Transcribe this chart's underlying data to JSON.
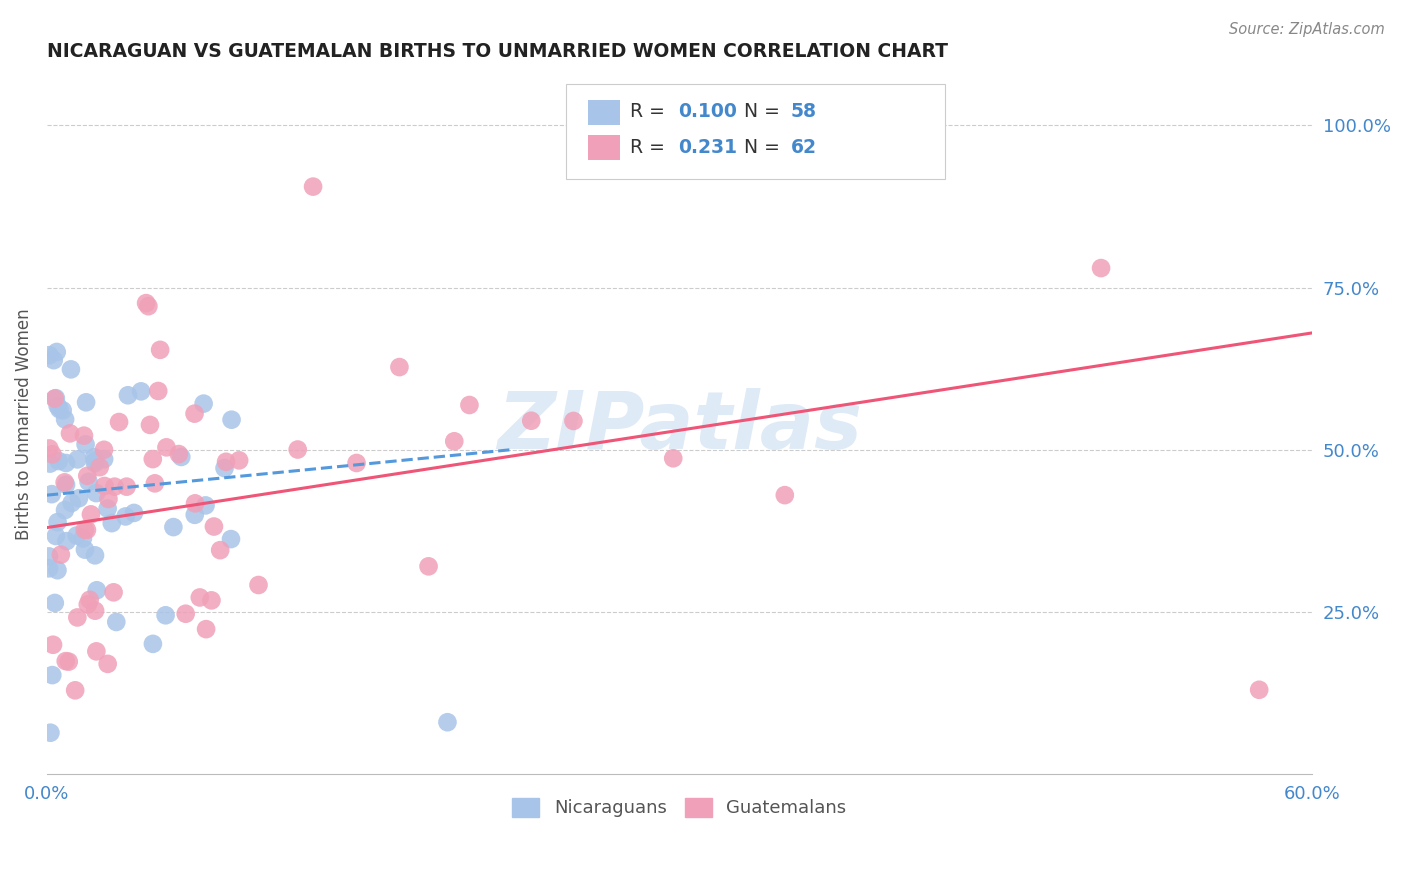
{
  "title": "NICARAGUAN VS GUATEMALAN BIRTHS TO UNMARRIED WOMEN CORRELATION CHART",
  "source": "Source: ZipAtlas.com",
  "ylabel": "Births to Unmarried Women",
  "ytick_labels": [
    "100.0%",
    "75.0%",
    "50.0%",
    "25.0%"
  ],
  "ytick_positions": [
    1.0,
    0.75,
    0.5,
    0.25
  ],
  "xlim": [
    0.0,
    0.6
  ],
  "ylim": [
    0.0,
    1.08
  ],
  "legend_r1": "R = 0.100",
  "legend_n1": "N = 58",
  "legend_r2": "R = 0.231",
  "legend_n2": "N = 62",
  "blue_color": "#a8c4e8",
  "pink_color": "#f0a0b8",
  "line_blue": "#5599dd",
  "line_pink": "#ee5577",
  "title_color": "#222222",
  "axis_label_color": "#4488cc",
  "source_color": "#888888",
  "watermark": "ZIPatlas",
  "seed": 42
}
